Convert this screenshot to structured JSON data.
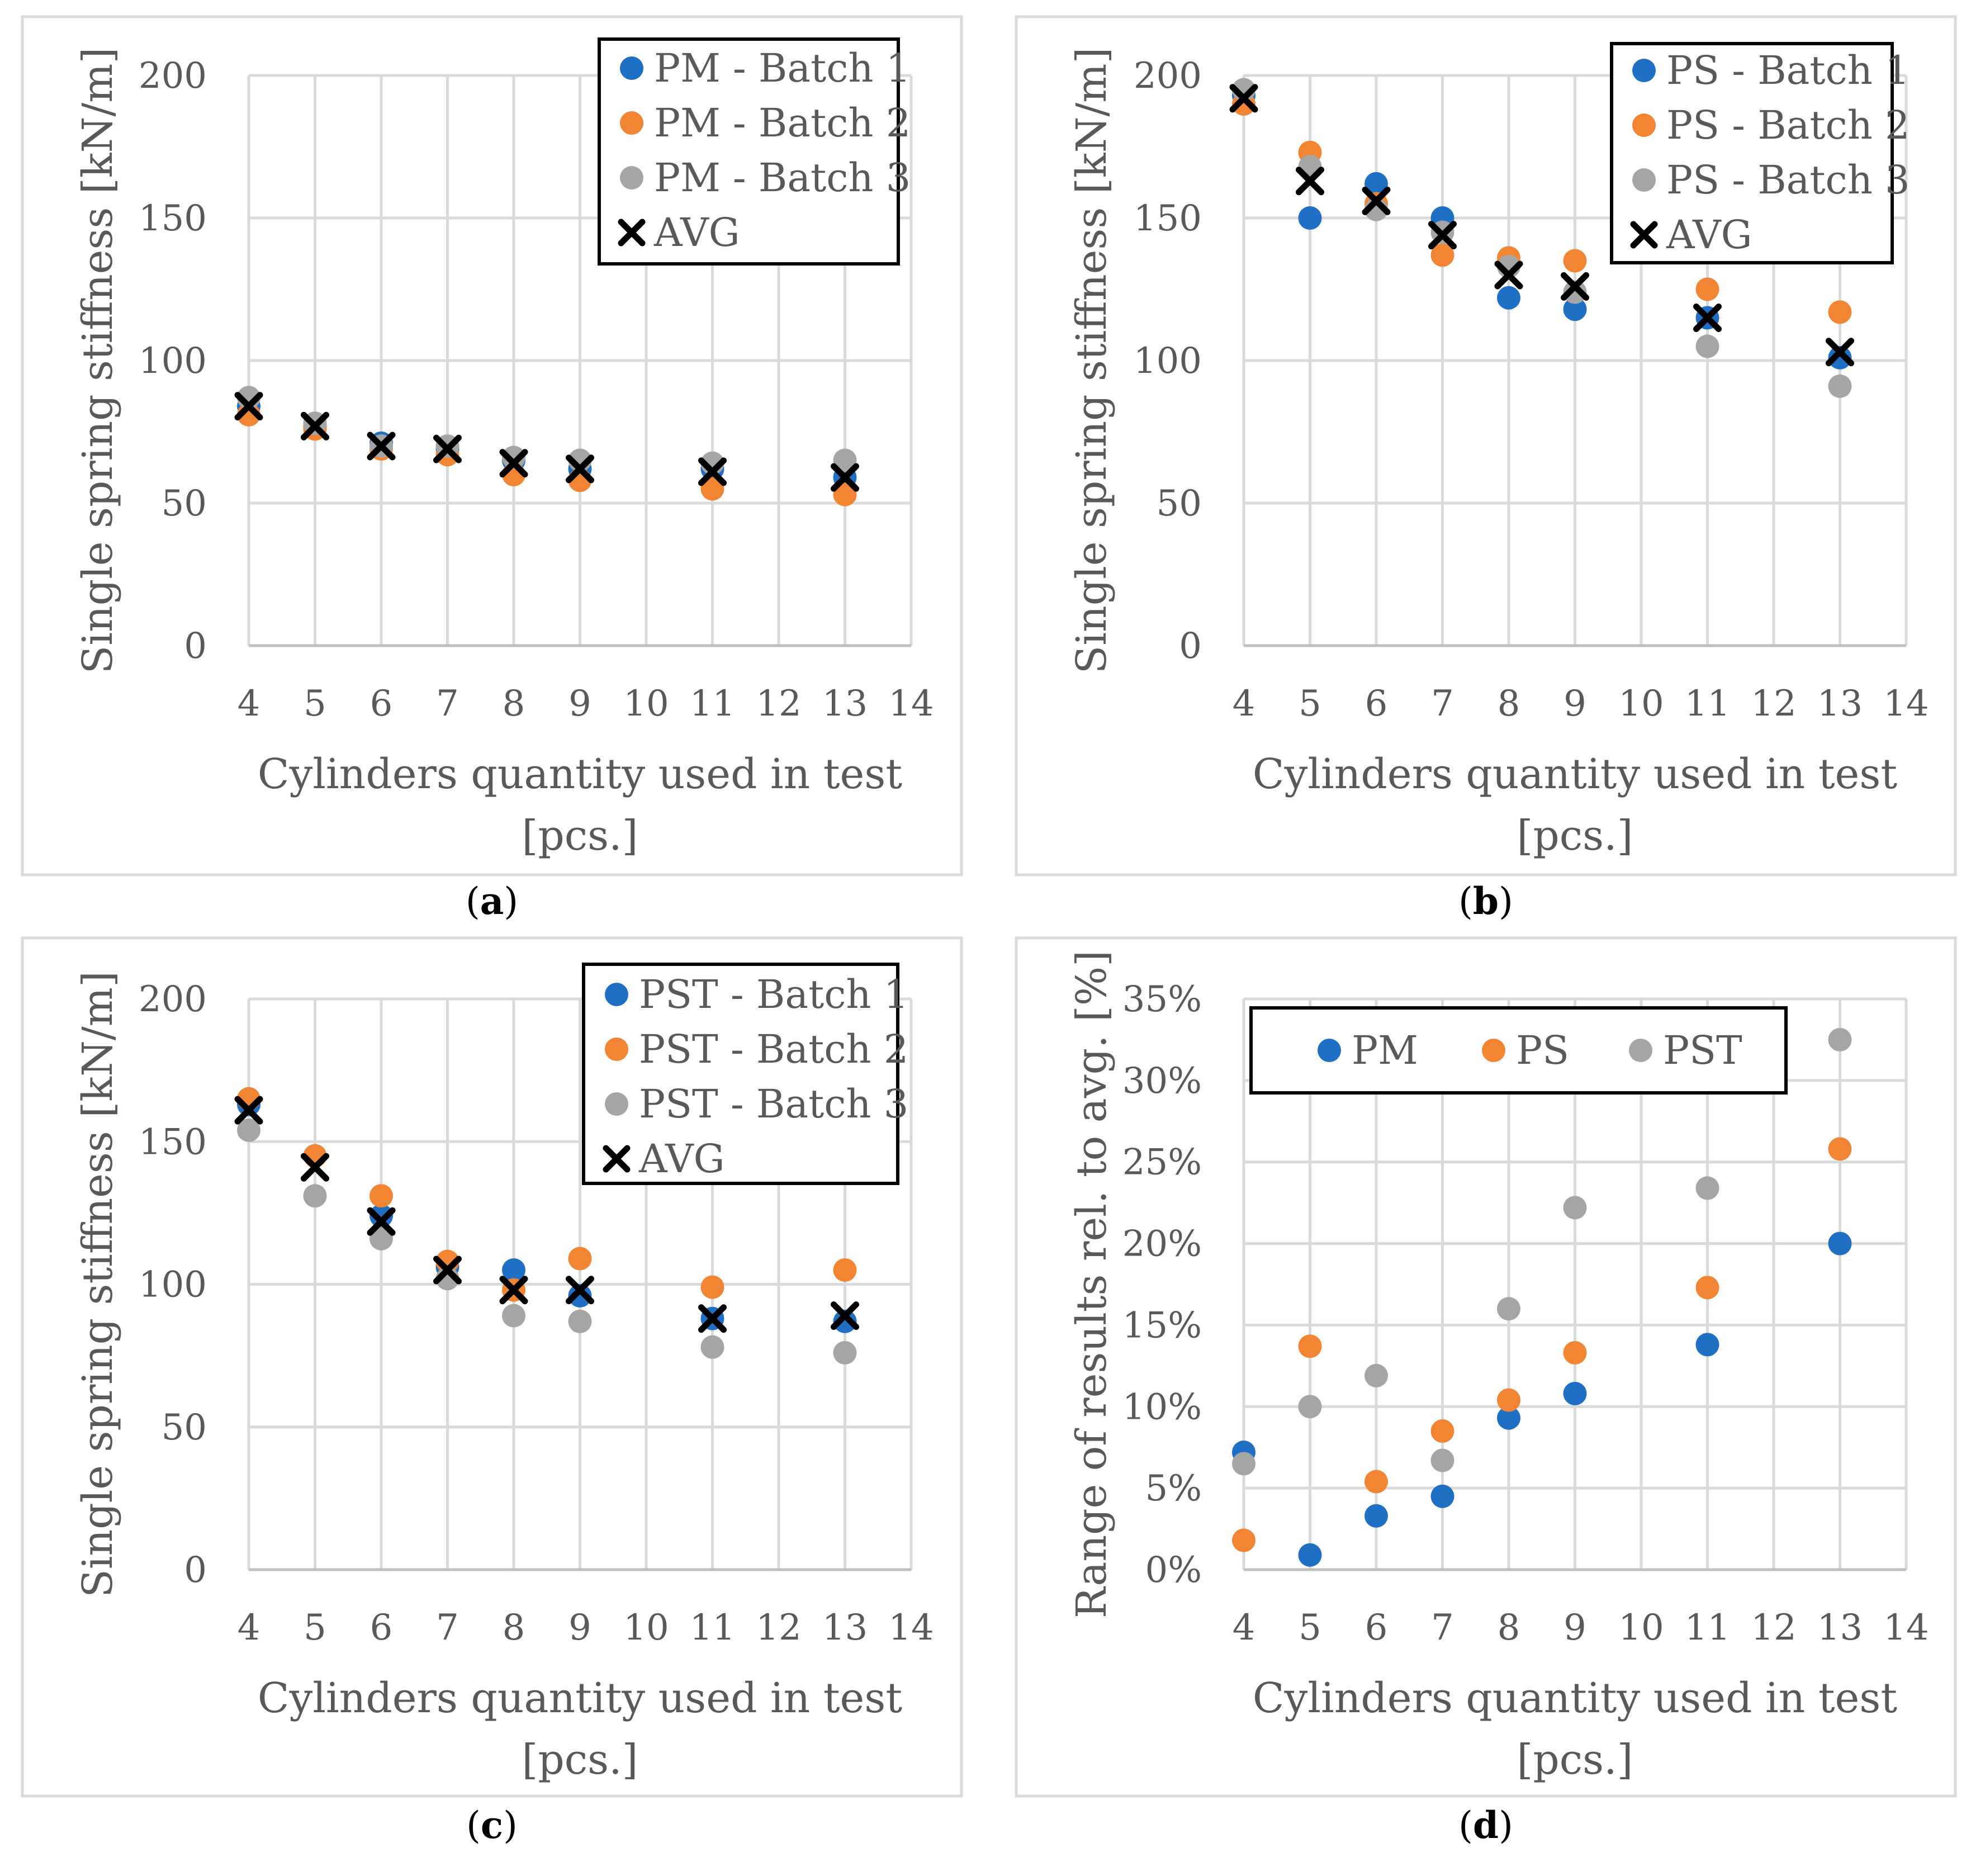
{
  "captions": [
    "(",
    ")"
  ],
  "chart_data": [
    {
      "type": "scatter",
      "panel": "a",
      "xlabel": "Cylinders quantity used in test [pcs.]",
      "ylabel": "Single spring stiffness [kN/m]",
      "xlim": [
        4,
        14
      ],
      "ylim": [
        0,
        200
      ],
      "xticks": [
        4,
        5,
        6,
        7,
        8,
        9,
        10,
        11,
        12,
        13,
        14
      ],
      "yticks": [
        0,
        50,
        100,
        150,
        200
      ],
      "y_format": "number",
      "grid": true,
      "legend": "top-right",
      "x": [
        4,
        5,
        6,
        7,
        8,
        9,
        11,
        13
      ],
      "series": [
        {
          "name": "PM - Batch 1",
          "marker": "circle",
          "color": "#1f6fc5",
          "values": [
            84,
            77,
            71,
            69,
            65,
            62,
            62,
            59
          ]
        },
        {
          "name": "PM - Batch 2",
          "marker": "circle",
          "color": "#f28533",
          "values": [
            81,
            76,
            69,
            67,
            60,
            58,
            55,
            53
          ]
        },
        {
          "name": "PM - Batch 3",
          "marker": "circle",
          "color": "#a5a5a5",
          "values": [
            87,
            78,
            70,
            70,
            66,
            65,
            64,
            65
          ]
        },
        {
          "name": "AVG",
          "marker": "x",
          "color": "#000000",
          "values": [
            84,
            77,
            70,
            69,
            64,
            62,
            61,
            59
          ]
        }
      ]
    },
    {
      "type": "scatter",
      "panel": "b",
      "xlabel": "Cylinders quantity used in test [pcs.]",
      "ylabel": "Single spring stiffness [kN/m]",
      "xlim": [
        4,
        14
      ],
      "ylim": [
        0,
        200
      ],
      "xticks": [
        4,
        5,
        6,
        7,
        8,
        9,
        10,
        11,
        12,
        13,
        14
      ],
      "yticks": [
        0,
        50,
        100,
        150,
        200
      ],
      "y_format": "number",
      "grid": true,
      "legend": "top-right",
      "x": [
        4,
        5,
        6,
        7,
        8,
        9,
        11,
        13
      ],
      "series": [
        {
          "name": "PS - Batch 1",
          "marker": "circle",
          "color": "#1f6fc5",
          "values": [
            193,
            150,
            162,
            150,
            122,
            118,
            115,
            101
          ]
        },
        {
          "name": "PS - Batch 2",
          "marker": "circle",
          "color": "#f28533",
          "values": [
            190,
            173,
            155,
            137,
            136,
            135,
            125,
            117
          ]
        },
        {
          "name": "PS - Batch 3",
          "marker": "circle",
          "color": "#a5a5a5",
          "values": [
            195,
            168,
            153,
            145,
            133,
            124,
            105,
            91
          ]
        },
        {
          "name": "AVG",
          "marker": "x",
          "color": "#000000",
          "values": [
            192,
            163,
            156,
            144,
            130,
            126,
            115,
            103
          ]
        }
      ]
    },
    {
      "type": "scatter",
      "panel": "c",
      "xlabel": "Cylinders quantity used in test [pcs.]",
      "ylabel": "Single spring stiffness [kN/m]",
      "xlim": [
        4,
        14
      ],
      "ylim": [
        0,
        200
      ],
      "xticks": [
        4,
        5,
        6,
        7,
        8,
        9,
        10,
        11,
        12,
        13,
        14
      ],
      "yticks": [
        0,
        50,
        100,
        150,
        200
      ],
      "y_format": "number",
      "grid": true,
      "legend": "top-right",
      "x": [
        4,
        5,
        6,
        7,
        8,
        9,
        11,
        13
      ],
      "series": [
        {
          "name": "PST - Batch 1",
          "marker": "circle",
          "color": "#1f6fc5",
          "values": [
            163,
            145,
            124,
            106,
            105,
            96,
            88,
            87
          ]
        },
        {
          "name": "PST - Batch 2",
          "marker": "circle",
          "color": "#f28533",
          "values": [
            165,
            145,
            131,
            108,
            98,
            109,
            99,
            105
          ]
        },
        {
          "name": "PST - Batch 3",
          "marker": "circle",
          "color": "#a5a5a5",
          "values": [
            154,
            131,
            116,
            102,
            89,
            87,
            78,
            76
          ]
        },
        {
          "name": "AVG",
          "marker": "x",
          "color": "#000000",
          "values": [
            161,
            141,
            122,
            105,
            98,
            98,
            88,
            89
          ]
        }
      ]
    },
    {
      "type": "scatter",
      "panel": "d",
      "xlabel": "Cylinders quantity used in test [pcs.]",
      "ylabel": "Range of results rel. to avg. [%]",
      "xlim": [
        4,
        14
      ],
      "ylim": [
        0,
        35
      ],
      "xticks": [
        4,
        5,
        6,
        7,
        8,
        9,
        10,
        11,
        12,
        13,
        14
      ],
      "yticks": [
        0,
        5,
        10,
        15,
        20,
        25,
        30,
        35
      ],
      "y_format": "percent",
      "grid": true,
      "legend": "top-inside-horizontal",
      "x": [
        4,
        5,
        6,
        7,
        8,
        9,
        11,
        13
      ],
      "series": [
        {
          "name": "PM",
          "marker": "circle",
          "color": "#1f6fc5",
          "values": [
            7.2,
            0.9,
            3.3,
            4.5,
            9.3,
            10.8,
            13.8,
            20.0
          ]
        },
        {
          "name": "PS",
          "marker": "circle",
          "color": "#f28533",
          "values": [
            1.8,
            13.7,
            5.4,
            8.5,
            10.4,
            13.3,
            17.3,
            25.8
          ]
        },
        {
          "name": "PST",
          "marker": "circle",
          "color": "#a5a5a5",
          "values": [
            6.5,
            10.0,
            11.9,
            6.7,
            16.0,
            22.2,
            23.4,
            32.5
          ]
        }
      ]
    }
  ]
}
